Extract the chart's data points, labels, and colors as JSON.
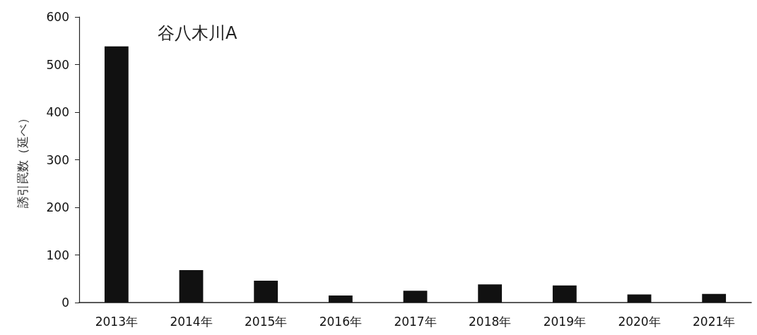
{
  "chart_data": {
    "type": "bar",
    "title": "谷八木川A",
    "ylabel": "誘引罠数（延べ）",
    "categories": [
      "2013年",
      "2014年",
      "2015年",
      "2016年",
      "2017年",
      "2018年",
      "2019年",
      "2020年",
      "2021年"
    ],
    "values": [
      538,
      68,
      46,
      15,
      25,
      38,
      36,
      17,
      18
    ],
    "color": "#111111",
    "ylim": [
      0,
      600
    ],
    "yticks": [
      0,
      100,
      200,
      300,
      400,
      500,
      600
    ],
    "grid": false
  }
}
